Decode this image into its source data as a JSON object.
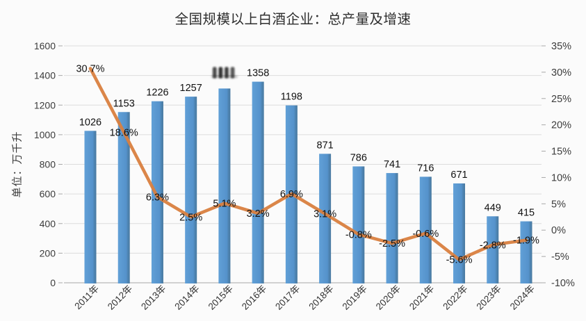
{
  "header": {
    "title": "全国规模以上白酒企业：总产量及增速"
  },
  "chart_data": {
    "type": "bar+line",
    "title": "全国规模以上白酒企业：总产量及增速",
    "categories": [
      "2011年",
      "2012年",
      "2013年",
      "2014年",
      "2015年",
      "2016年",
      "2017年",
      "2018年",
      "2019年",
      "2020年",
      "2021年",
      "2022年",
      "2023年",
      "2024年"
    ],
    "series": [
      {
        "name": "总产量",
        "type": "bar",
        "axis": "left",
        "color": "#5592cb",
        "edge_color": "#49799f",
        "values": [
          1026,
          1153,
          1226,
          1257,
          1312,
          1358,
          1198,
          871,
          786,
          741,
          716,
          671,
          449,
          415
        ],
        "data_labels": [
          "1026",
          "1153",
          "1226",
          "1257",
          "",
          "1358",
          "1198",
          "871",
          "786",
          "741",
          "716",
          "671",
          "449",
          "415"
        ]
      },
      {
        "name": "增速",
        "type": "line",
        "axis": "right",
        "color": "#d9803f",
        "values": [
          30.7,
          18.6,
          6.3,
          2.5,
          5.1,
          3.2,
          6.9,
          3.1,
          -0.8,
          -2.5,
          -0.6,
          -5.6,
          -2.8,
          -1.9
        ],
        "data_labels": [
          "30.7%",
          "18.6%",
          "6.3%",
          "2.5%",
          "5.1%",
          "3.2%",
          "6.9%",
          "3.1%",
          "-0.8%",
          "-2.5%",
          "-0.6%",
          "-5.6%",
          "-2.8%",
          "-1.9%"
        ]
      }
    ],
    "left_axis": {
      "min": 0,
      "max": 1600,
      "step": 200,
      "tick_labels": [
        "1600",
        "1400",
        "1200",
        "1000",
        "800",
        "600",
        "400",
        "200",
        "0"
      ],
      "unit_label": "单位：万千升"
    },
    "right_axis": {
      "min": -10,
      "max": 35,
      "step": 5,
      "tick_labels": [
        "35%",
        "30%",
        "25%",
        "20%",
        "15%",
        "10%",
        "5%",
        "0%",
        "-5%",
        "-10%"
      ]
    },
    "grid": "horizontal",
    "legend": "none",
    "watermark": {
      "type": "obscured-data-label",
      "over_category": "2015年",
      "appearance": "four dark blurred vertical strokes covering the 2015 bar value label"
    },
    "colors": {
      "bar": "#5592cb",
      "line": "#d9803f",
      "grid": "#dcdcdc",
      "axis_line": "#b8b8b8",
      "label_text": "#111111",
      "tick_text": "#3c3c3c"
    }
  }
}
